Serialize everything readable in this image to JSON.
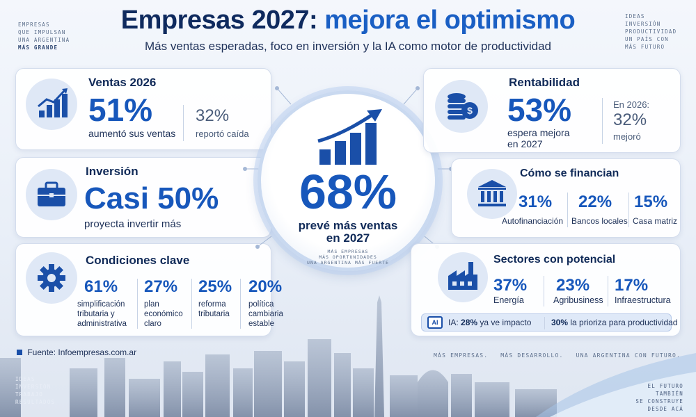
{
  "corners": {
    "top_left": [
      "EMPRESAS",
      "QUE IMPULSAN",
      "UNA ARGENTINA",
      "MÁS GRANDE"
    ],
    "top_right": [
      "IDEAS",
      "INVERSIÓN",
      "PRODUCTIVIDAD",
      "UN PAÍS CON",
      "MÁS FUTURO"
    ],
    "bottom_left": [
      "IDEAS",
      "INVERSIÓN",
      "TRABAJO",
      "RESULTADOS"
    ],
    "bottom_right": [
      "EL FUTURO",
      "TAMBIÉN",
      "SE CONSTRUYE",
      "DESDE ACÁ"
    ]
  },
  "header": {
    "title_part1": "Empresas 2027:",
    "title_part2": "mejora el optimismo",
    "subtitle": "Más ventas esperadas, foco en inversión y la IA como motor de productividad"
  },
  "ventas": {
    "title": "Ventas 2026",
    "main_value": "51%",
    "main_label": "aumentó sus ventas",
    "side_value": "32%",
    "side_label": "reportó caída",
    "icon": "growth-chart-icon"
  },
  "inversion": {
    "title": "Inversión",
    "main_value": "Casi 50%",
    "main_label": "proyecta invertir más",
    "icon": "briefcase-icon"
  },
  "condiciones": {
    "title": "Condiciones clave",
    "icon": "gear-icon",
    "items": [
      {
        "value": "61%",
        "label": [
          "simplificación",
          "tributaria y",
          "administrativa"
        ]
      },
      {
        "value": "27%",
        "label": [
          "plan",
          "económico",
          "claro"
        ]
      },
      {
        "value": "25%",
        "label": [
          "reforma",
          "tributaria"
        ]
      },
      {
        "value": "20%",
        "label": [
          "política",
          "cambiaria",
          "estable"
        ]
      }
    ]
  },
  "center": {
    "value": "68%",
    "label_line1": "prevé más ventas",
    "label_line2": "en 2027",
    "tagline": [
      "MÁS EMPRESAS",
      "MÁS OPORTUNIDADES",
      "UNA ARGENTINA MÁS FUERTE"
    ],
    "icon": "rising-bars-arrow-icon"
  },
  "rentabilidad": {
    "title": "Rentabilidad",
    "main_value": "53%",
    "main_label": [
      "espera mejora",
      "en 2027"
    ],
    "side_label1": "En 2026:",
    "side_value": "32%",
    "side_label2": "mejoró",
    "icon": "coins-dollar-icon"
  },
  "financian": {
    "title": "Cómo se financian",
    "icon": "bank-icon",
    "items": [
      {
        "value": "31%",
        "label": "Autofinanciación"
      },
      {
        "value": "22%",
        "label": "Bancos locales"
      },
      {
        "value": "15%",
        "label": "Casa matriz"
      }
    ]
  },
  "sectores": {
    "title": "Sectores con potencial",
    "icon": "factory-icon",
    "items": [
      {
        "value": "37%",
        "label": "Energía"
      },
      {
        "value": "23%",
        "label": "Agribusiness"
      },
      {
        "value": "17%",
        "label": "Infraestructura"
      }
    ],
    "ia_badge": "AI",
    "ia_prefix": "IA:",
    "ia_value1": "28%",
    "ia_text1": "ya ve impacto",
    "ia_value2": "30%",
    "ia_text2": "la prioriza para productividad"
  },
  "footer": {
    "source": "Fuente: Infoempresas.com.ar",
    "tagline": "MÁS EMPRESAS.   MÁS DESARROLLO.   UNA ARGENTINA CON FUTURO."
  },
  "colors": {
    "accent": "#1757bb",
    "navy": "#0f2a5e",
    "card": "#ffffff"
  }
}
